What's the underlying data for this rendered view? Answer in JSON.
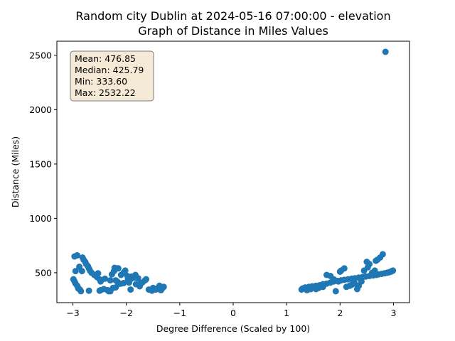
{
  "chart_data": {
    "type": "scatter",
    "title_line1": "Random city Dublin at 2024-05-16 07:00:00  - elevation",
    "title_line2": "Graph of Distance in Miles Values",
    "xlabel": "Degree Difference (Scaled by 100)",
    "ylabel": "Distance (Miles)",
    "xlim": [
      -3.3,
      3.3
    ],
    "ylim": [
      225,
      2630
    ],
    "xticks": [
      -3,
      -2,
      -1,
      0,
      1,
      2,
      3
    ],
    "yticks": [
      500,
      1000,
      1500,
      2000,
      2500
    ],
    "grid": false,
    "marker_color": "#1f77b4",
    "stats_box": {
      "placement": "top-left",
      "lines": [
        "Mean: 476.85",
        "Median: 425.79",
        "Min: 333.60",
        "Max: 2532.22"
      ],
      "facecolor": "#f5ead6",
      "edgecolor": "#7a7a7a"
    },
    "x": [
      -2.97,
      -2.95,
      -2.92,
      -2.9,
      -2.88,
      -2.83,
      -2.7,
      -2.57,
      -2.53,
      -2.5,
      -2.48,
      -2.4,
      -2.33,
      -2.3,
      -2.27,
      -2.23,
      -2.22,
      -2.2,
      -2.17,
      -2.15,
      -2.1,
      -2.05,
      -2.02,
      -1.97,
      -1.95,
      -1.92,
      -1.9,
      -1.85,
      -1.82,
      -1.78,
      -1.75,
      -1.73,
      -1.7,
      -1.65,
      -1.63,
      -1.5,
      -1.45,
      -1.3,
      -1.33,
      -1.35,
      -1.38,
      -1.4,
      -1.42,
      -1.45,
      -1.48,
      -1.52,
      -1.58,
      -1.75,
      -1.83,
      -1.88,
      -1.92,
      -1.98,
      -2.05,
      -2.1,
      -2.15,
      -2.17,
      -2.2,
      -2.25,
      -2.3,
      -2.35,
      -2.42,
      -2.48,
      -2.5,
      -2.55,
      -2.6,
      -2.65,
      -2.68,
      -2.7,
      -2.72,
      -2.75,
      -2.77,
      -2.8,
      -2.82,
      -2.85,
      -2.87,
      -2.9,
      -2.92,
      -2.95,
      -2.97,
      -2.99,
      2.85,
      2.8,
      2.75,
      2.7,
      2.67,
      2.65,
      2.6,
      2.55,
      2.52,
      2.5,
      2.45,
      2.4,
      2.35,
      2.32,
      2.28,
      2.22,
      2.18,
      2.12,
      2.08,
      2.02,
      2.0,
      1.97,
      1.92,
      1.88,
      1.82,
      1.75,
      1.68,
      1.6,
      1.55,
      1.5,
      1.45,
      1.4,
      1.38,
      1.33,
      1.3,
      1.28,
      1.35,
      1.42,
      1.48,
      1.55,
      1.62,
      1.68,
      1.75,
      1.82,
      1.88,
      1.95,
      2.02,
      2.08,
      2.15,
      2.22,
      2.28,
      2.35,
      2.42,
      2.48,
      2.55,
      2.62,
      2.68,
      2.72,
      2.78,
      2.83,
      2.88,
      2.92,
      2.95,
      2.97,
      2.99
    ],
    "y": [
      650,
      515,
      660,
      355,
      555,
      515,
      335,
      480,
      495,
      335,
      340,
      445,
      330,
      430,
      485,
      515,
      545,
      365,
      540,
      540,
      480,
      405,
      520,
      440,
      410,
      345,
      465,
      455,
      395,
      450,
      375,
      400,
      410,
      430,
      440,
      360,
      350,
      370,
      355,
      340,
      380,
      360,
      350,
      345,
      355,
      335,
      345,
      395,
      480,
      460,
      440,
      470,
      500,
      400,
      395,
      420,
      430,
      360,
      330,
      340,
      350,
      420,
      440,
      460,
      480,
      500,
      520,
      540,
      560,
      580,
      600,
      620,
      640,
      330,
      345,
      360,
      380,
      400,
      420,
      440,
      2532,
      670,
      640,
      620,
      610,
      520,
      500,
      580,
      550,
      600,
      520,
      420,
      380,
      350,
      400,
      390,
      380,
      370,
      540,
      520,
      510,
      420,
      330,
      440,
      470,
      480,
      370,
      360,
      350,
      370,
      350,
      345,
      340,
      360,
      355,
      345,
      365,
      370,
      375,
      380,
      385,
      395,
      400,
      410,
      420,
      425,
      430,
      435,
      440,
      445,
      450,
      455,
      460,
      465,
      470,
      475,
      480,
      485,
      490,
      495,
      500,
      505,
      510,
      515,
      520
    ]
  }
}
